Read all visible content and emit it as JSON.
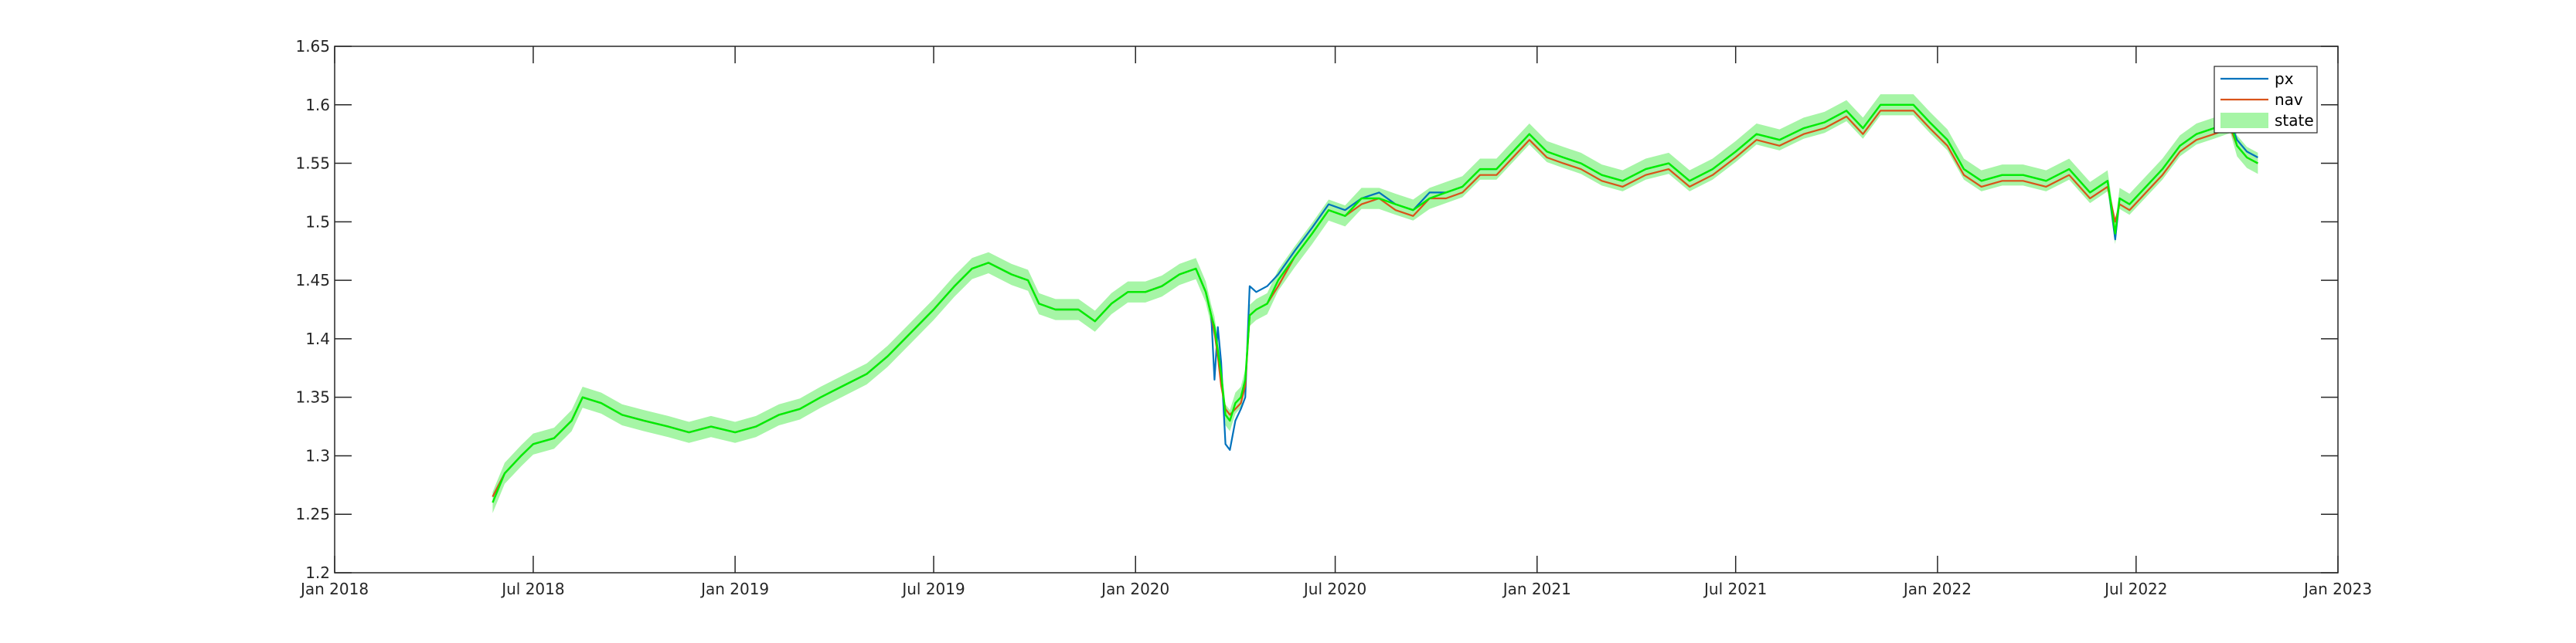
{
  "chart_data": {
    "type": "line",
    "title": "",
    "xlabel": "",
    "ylabel": "",
    "xlim": [
      "2018-01-01",
      "2023-01-01"
    ],
    "ylim": [
      1.2,
      1.65
    ],
    "x_ticks": [
      {
        "date": "2018-01-01",
        "label": "Jan 2018"
      },
      {
        "date": "2018-07-01",
        "label": "Jul 2018"
      },
      {
        "date": "2019-01-01",
        "label": "Jan 2019"
      },
      {
        "date": "2019-07-01",
        "label": "Jul 2019"
      },
      {
        "date": "2020-01-01",
        "label": "Jan 2020"
      },
      {
        "date": "2020-07-01",
        "label": "Jul 2020"
      },
      {
        "date": "2021-01-01",
        "label": "Jan 2021"
      },
      {
        "date": "2021-07-01",
        "label": "Jul 2021"
      },
      {
        "date": "2022-01-01",
        "label": "Jan 2022"
      },
      {
        "date": "2022-07-01",
        "label": "Jul 2022"
      },
      {
        "date": "2023-01-01",
        "label": "Jan 2023"
      }
    ],
    "y_ticks": [
      {
        "value": 1.2,
        "label": "1.2"
      },
      {
        "value": 1.25,
        "label": "1.25"
      },
      {
        "value": 1.3,
        "label": "1.3"
      },
      {
        "value": 1.35,
        "label": "1.35"
      },
      {
        "value": 1.4,
        "label": "1.4"
      },
      {
        "value": 1.45,
        "label": "1.45"
      },
      {
        "value": 1.5,
        "label": "1.5"
      },
      {
        "value": 1.55,
        "label": "1.55"
      },
      {
        "value": 1.6,
        "label": "1.6"
      },
      {
        "value": 1.65,
        "label": "1.65"
      }
    ],
    "grid": false,
    "legend_position": "top-right",
    "legend": [
      {
        "name": "px",
        "color": "#0072BD"
      },
      {
        "name": "nav",
        "color": "#D95319"
      },
      {
        "name": "state",
        "color": "#00EE00",
        "band_color": "#A6F5A6"
      }
    ],
    "series": [
      {
        "name": "px",
        "color": "#0072BD",
        "x": [
          "2018-05-25",
          "2018-06-05",
          "2018-06-20",
          "2018-07-01",
          "2018-07-20",
          "2018-08-05",
          "2018-08-15",
          "2018-09-01",
          "2018-09-20",
          "2018-10-10",
          "2018-11-01",
          "2018-11-20",
          "2018-12-10",
          "2019-01-01",
          "2019-01-20",
          "2019-02-10",
          "2019-03-01",
          "2019-03-20",
          "2019-04-10",
          "2019-05-01",
          "2019-05-20",
          "2019-06-10",
          "2019-07-01",
          "2019-07-20",
          "2019-08-05",
          "2019-08-20",
          "2019-09-10",
          "2019-09-25",
          "2019-10-05",
          "2019-10-20",
          "2019-11-10",
          "2019-11-25",
          "2019-12-10",
          "2019-12-25",
          "2020-01-10",
          "2020-01-25",
          "2020-02-10",
          "2020-02-25",
          "2020-03-05",
          "2020-03-10",
          "2020-03-13",
          "2020-03-16",
          "2020-03-19",
          "2020-03-23",
          "2020-03-27",
          "2020-04-01",
          "2020-04-06",
          "2020-04-10",
          "2020-04-14",
          "2020-04-20",
          "2020-04-30",
          "2020-05-10",
          "2020-05-25",
          "2020-06-10",
          "2020-06-25",
          "2020-07-10",
          "2020-07-25",
          "2020-08-10",
          "2020-08-25",
          "2020-09-10",
          "2020-09-25",
          "2020-10-10",
          "2020-10-25",
          "2020-11-10",
          "2020-11-25",
          "2020-12-10",
          "2020-12-25",
          "2021-01-10",
          "2021-01-25",
          "2021-02-10",
          "2021-03-01",
          "2021-03-20",
          "2021-04-10",
          "2021-05-01",
          "2021-05-20",
          "2021-06-10",
          "2021-07-01",
          "2021-07-20",
          "2021-08-10",
          "2021-09-01",
          "2021-09-20",
          "2021-10-10",
          "2021-10-25",
          "2021-11-10",
          "2021-11-25",
          "2021-12-10",
          "2021-12-25",
          "2022-01-10",
          "2022-01-25",
          "2022-02-10",
          "2022-03-01",
          "2022-03-20",
          "2022-04-10",
          "2022-05-01",
          "2022-05-20",
          "2022-06-05",
          "2022-06-12",
          "2022-06-16",
          "2022-06-25",
          "2022-07-10",
          "2022-07-25",
          "2022-08-10",
          "2022-08-25",
          "2022-09-10",
          "2022-09-25",
          "2022-10-01",
          "2022-10-10",
          "2022-10-20"
        ],
        "y": [
          1.265,
          1.285,
          1.3,
          1.31,
          1.315,
          1.33,
          1.35,
          1.345,
          1.335,
          1.33,
          1.325,
          1.32,
          1.325,
          1.32,
          1.325,
          1.335,
          1.34,
          1.35,
          1.36,
          1.37,
          1.385,
          1.405,
          1.425,
          1.445,
          1.46,
          1.465,
          1.455,
          1.45,
          1.43,
          1.425,
          1.425,
          1.415,
          1.43,
          1.44,
          1.44,
          1.445,
          1.455,
          1.46,
          1.44,
          1.42,
          1.365,
          1.41,
          1.38,
          1.31,
          1.305,
          1.33,
          1.34,
          1.35,
          1.445,
          1.44,
          1.445,
          1.455,
          1.475,
          1.495,
          1.515,
          1.51,
          1.52,
          1.525,
          1.515,
          1.51,
          1.525,
          1.525,
          1.53,
          1.545,
          1.545,
          1.56,
          1.575,
          1.56,
          1.555,
          1.55,
          1.54,
          1.535,
          1.545,
          1.55,
          1.535,
          1.545,
          1.56,
          1.575,
          1.57,
          1.58,
          1.585,
          1.595,
          1.58,
          1.6,
          1.6,
          1.6,
          1.585,
          1.57,
          1.545,
          1.535,
          1.54,
          1.54,
          1.535,
          1.545,
          1.525,
          1.535,
          1.485,
          1.52,
          1.515,
          1.53,
          1.545,
          1.565,
          1.575,
          1.58,
          1.585,
          1.57,
          1.56,
          1.555
        ]
      },
      {
        "name": "nav",
        "color": "#D95319",
        "x": [
          "2018-05-25",
          "2018-06-05",
          "2018-06-20",
          "2018-07-01",
          "2018-07-20",
          "2018-08-05",
          "2018-08-15",
          "2018-09-01",
          "2018-09-20",
          "2018-10-10",
          "2018-11-01",
          "2018-11-20",
          "2018-12-10",
          "2019-01-01",
          "2019-01-20",
          "2019-02-10",
          "2019-03-01",
          "2019-03-20",
          "2019-04-10",
          "2019-05-01",
          "2019-05-20",
          "2019-06-10",
          "2019-07-01",
          "2019-07-20",
          "2019-08-05",
          "2019-08-20",
          "2019-09-10",
          "2019-09-25",
          "2019-10-05",
          "2019-10-20",
          "2019-11-10",
          "2019-11-25",
          "2019-12-10",
          "2019-12-25",
          "2020-01-10",
          "2020-01-25",
          "2020-02-10",
          "2020-02-25",
          "2020-03-05",
          "2020-03-10",
          "2020-03-13",
          "2020-03-16",
          "2020-03-19",
          "2020-03-23",
          "2020-03-27",
          "2020-04-01",
          "2020-04-06",
          "2020-04-10",
          "2020-04-14",
          "2020-04-20",
          "2020-04-30",
          "2020-05-10",
          "2020-05-25",
          "2020-06-10",
          "2020-06-25",
          "2020-07-10",
          "2020-07-25",
          "2020-08-10",
          "2020-08-25",
          "2020-09-10",
          "2020-09-25",
          "2020-10-10",
          "2020-10-25",
          "2020-11-10",
          "2020-11-25",
          "2020-12-10",
          "2020-12-25",
          "2021-01-10",
          "2021-01-25",
          "2021-02-10",
          "2021-03-01",
          "2021-03-20",
          "2021-04-10",
          "2021-05-01",
          "2021-05-20",
          "2021-06-10",
          "2021-07-01",
          "2021-07-20",
          "2021-08-10",
          "2021-09-01",
          "2021-09-20",
          "2021-10-10",
          "2021-10-25",
          "2021-11-10",
          "2021-11-25",
          "2021-12-10",
          "2021-12-25",
          "2022-01-10",
          "2022-01-25",
          "2022-02-10",
          "2022-03-01",
          "2022-03-20",
          "2022-04-10",
          "2022-05-01",
          "2022-05-20",
          "2022-06-05",
          "2022-06-12",
          "2022-06-16",
          "2022-06-25",
          "2022-07-10",
          "2022-07-25",
          "2022-08-10",
          "2022-08-25",
          "2022-09-10",
          "2022-09-25",
          "2022-10-01",
          "2022-10-10",
          "2022-10-20"
        ],
        "y": [
          1.265,
          1.285,
          1.3,
          1.31,
          1.315,
          1.33,
          1.35,
          1.345,
          1.335,
          1.33,
          1.325,
          1.32,
          1.325,
          1.32,
          1.325,
          1.335,
          1.34,
          1.35,
          1.36,
          1.37,
          1.385,
          1.405,
          1.425,
          1.445,
          1.46,
          1.465,
          1.455,
          1.45,
          1.43,
          1.425,
          1.425,
          1.415,
          1.43,
          1.44,
          1.44,
          1.445,
          1.455,
          1.46,
          1.44,
          1.42,
          1.405,
          1.385,
          1.36,
          1.34,
          1.335,
          1.34,
          1.345,
          1.36,
          1.42,
          1.425,
          1.43,
          1.445,
          1.47,
          1.49,
          1.51,
          1.505,
          1.515,
          1.52,
          1.51,
          1.505,
          1.52,
          1.52,
          1.525,
          1.54,
          1.54,
          1.555,
          1.57,
          1.555,
          1.55,
          1.545,
          1.535,
          1.53,
          1.54,
          1.545,
          1.53,
          1.54,
          1.555,
          1.57,
          1.565,
          1.575,
          1.58,
          1.59,
          1.575,
          1.595,
          1.595,
          1.595,
          1.58,
          1.565,
          1.54,
          1.53,
          1.535,
          1.535,
          1.53,
          1.54,
          1.52,
          1.53,
          1.5,
          1.515,
          1.51,
          1.525,
          1.54,
          1.56,
          1.57,
          1.575,
          1.58,
          1.565,
          1.555,
          1.55
        ]
      },
      {
        "name": "state",
        "color": "#00EE00",
        "band_color": "#A6F5A6",
        "x": [
          "2018-05-25",
          "2018-06-05",
          "2018-06-20",
          "2018-07-01",
          "2018-07-20",
          "2018-08-05",
          "2018-08-15",
          "2018-09-01",
          "2018-09-20",
          "2018-10-10",
          "2018-11-01",
          "2018-11-20",
          "2018-12-10",
          "2019-01-01",
          "2019-01-20",
          "2019-02-10",
          "2019-03-01",
          "2019-03-20",
          "2019-04-10",
          "2019-05-01",
          "2019-05-20",
          "2019-06-10",
          "2019-07-01",
          "2019-07-20",
          "2019-08-05",
          "2019-08-20",
          "2019-09-10",
          "2019-09-25",
          "2019-10-05",
          "2019-10-20",
          "2019-11-10",
          "2019-11-25",
          "2019-12-10",
          "2019-12-25",
          "2020-01-10",
          "2020-01-25",
          "2020-02-10",
          "2020-02-25",
          "2020-03-05",
          "2020-03-10",
          "2020-03-13",
          "2020-03-16",
          "2020-03-19",
          "2020-03-23",
          "2020-03-27",
          "2020-04-01",
          "2020-04-06",
          "2020-04-10",
          "2020-04-14",
          "2020-04-20",
          "2020-04-30",
          "2020-05-10",
          "2020-05-25",
          "2020-06-10",
          "2020-06-25",
          "2020-07-10",
          "2020-07-25",
          "2020-08-10",
          "2020-08-25",
          "2020-09-10",
          "2020-09-25",
          "2020-10-10",
          "2020-10-25",
          "2020-11-10",
          "2020-11-25",
          "2020-12-10",
          "2020-12-25",
          "2021-01-10",
          "2021-01-25",
          "2021-02-10",
          "2021-03-01",
          "2021-03-20",
          "2021-04-10",
          "2021-05-01",
          "2021-05-20",
          "2021-06-10",
          "2021-07-01",
          "2021-07-20",
          "2021-08-10",
          "2021-09-01",
          "2021-09-20",
          "2021-10-10",
          "2021-10-25",
          "2021-11-10",
          "2021-11-25",
          "2021-12-10",
          "2021-12-25",
          "2022-01-10",
          "2022-01-25",
          "2022-02-10",
          "2022-03-01",
          "2022-03-20",
          "2022-04-10",
          "2022-05-01",
          "2022-05-20",
          "2022-06-05",
          "2022-06-12",
          "2022-06-16",
          "2022-06-25",
          "2022-07-10",
          "2022-07-25",
          "2022-08-10",
          "2022-08-25",
          "2022-09-10",
          "2022-09-25",
          "2022-10-01",
          "2022-10-10",
          "2022-10-20"
        ],
        "y": [
          1.26,
          1.285,
          1.3,
          1.31,
          1.315,
          1.33,
          1.35,
          1.345,
          1.335,
          1.33,
          1.325,
          1.32,
          1.325,
          1.32,
          1.325,
          1.335,
          1.34,
          1.35,
          1.36,
          1.37,
          1.385,
          1.405,
          1.425,
          1.445,
          1.46,
          1.465,
          1.455,
          1.45,
          1.43,
          1.425,
          1.425,
          1.415,
          1.43,
          1.44,
          1.44,
          1.445,
          1.455,
          1.46,
          1.44,
          1.42,
          1.41,
          1.39,
          1.37,
          1.335,
          1.33,
          1.345,
          1.35,
          1.365,
          1.42,
          1.425,
          1.43,
          1.45,
          1.47,
          1.49,
          1.51,
          1.505,
          1.52,
          1.52,
          1.515,
          1.51,
          1.52,
          1.525,
          1.53,
          1.545,
          1.545,
          1.56,
          1.575,
          1.56,
          1.555,
          1.55,
          1.54,
          1.535,
          1.545,
          1.55,
          1.535,
          1.545,
          1.56,
          1.575,
          1.57,
          1.58,
          1.585,
          1.595,
          1.58,
          1.6,
          1.6,
          1.6,
          1.585,
          1.57,
          1.545,
          1.535,
          1.54,
          1.54,
          1.535,
          1.545,
          1.525,
          1.535,
          1.49,
          1.52,
          1.515,
          1.53,
          1.545,
          1.565,
          1.575,
          1.58,
          1.585,
          1.565,
          1.555,
          1.55
        ],
        "band_halfwidth": 0.009
      }
    ]
  }
}
